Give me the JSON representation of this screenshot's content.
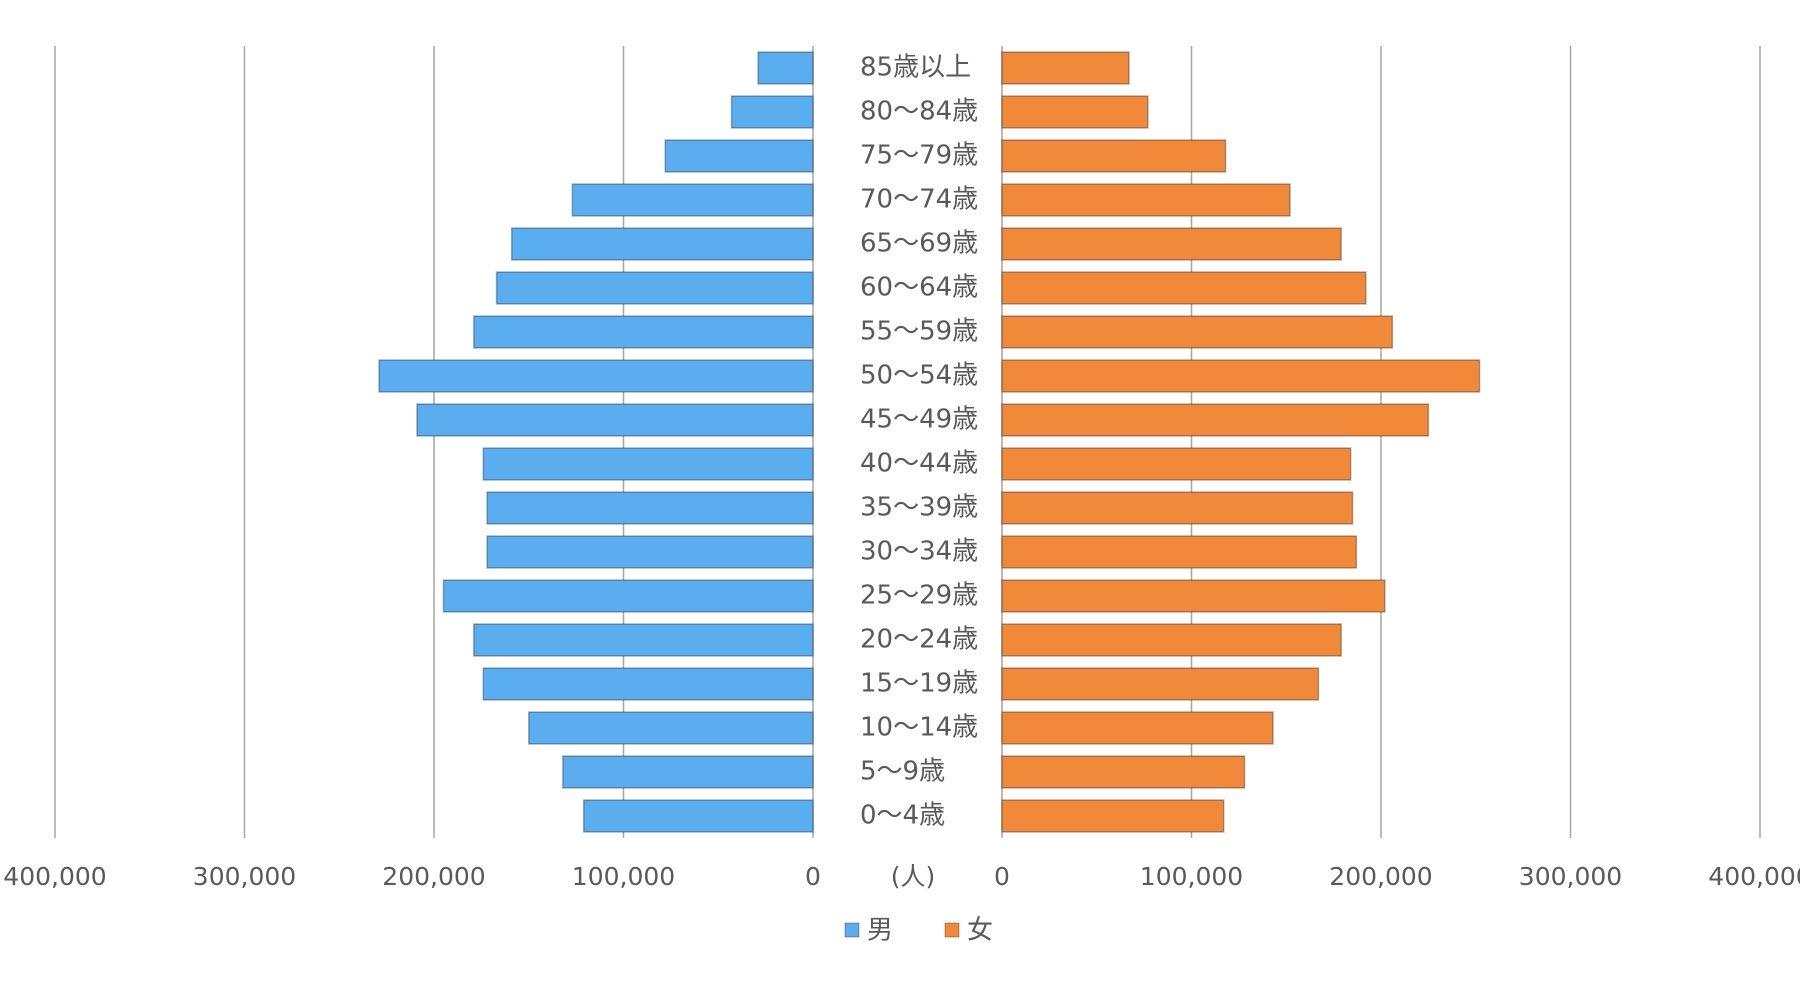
{
  "chart_data": {
    "type": "bar",
    "categories": [
      "85歳以上",
      "80〜84歳",
      "75〜79歳",
      "70〜74歳",
      "65〜69歳",
      "60〜64歳",
      "55〜59歳",
      "50〜54歳",
      "45〜49歳",
      "40〜44歳",
      "35〜39歳",
      "30〜34歳",
      "25〜29歳",
      "20〜24歳",
      "15〜19歳",
      "10〜14歳",
      "5〜9歳",
      "0〜4歳"
    ],
    "series": [
      {
        "name": "男",
        "color": "#5aaef0",
        "values": [
          29000,
          43000,
          78000,
          127000,
          159000,
          167000,
          179000,
          229000,
          209000,
          174000,
          172000,
          172000,
          195000,
          179000,
          174000,
          150000,
          132000,
          121000
        ]
      },
      {
        "name": "女",
        "color": "#f08a3a",
        "values": [
          67000,
          77000,
          118000,
          152000,
          179000,
          192000,
          206000,
          252000,
          225000,
          184000,
          185000,
          187000,
          202000,
          179000,
          167000,
          143000,
          128000,
          117000
        ]
      }
    ],
    "unit_label": "(人)",
    "xlim": [
      0,
      400000
    ],
    "xticks": [
      0,
      {
        "value": 100000,
        "label": "100,000"
      },
      {
        "value": 200000,
        "label": "200,000"
      },
      {
        "value": 300000,
        "label": "300,000"
      },
      {
        "value": 400000,
        "label": "400,000"
      }
    ],
    "grid": true,
    "legend": "bottom"
  }
}
